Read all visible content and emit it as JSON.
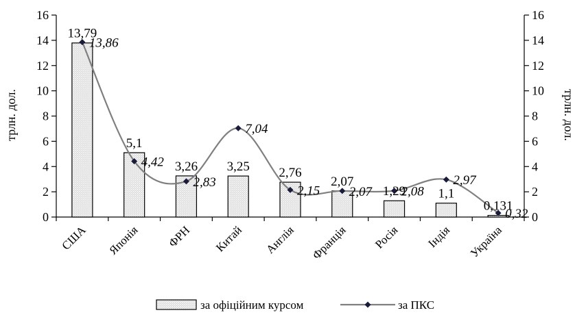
{
  "chart_data": {
    "type": "bar",
    "categories": [
      "США",
      "Японія",
      "ФРН",
      "Китай",
      "Англія",
      "Франція",
      "Росія",
      "Індія",
      "Україна"
    ],
    "series": [
      {
        "name": "за офіційним курсом",
        "type": "bar",
        "values": [
          13.79,
          5.1,
          3.26,
          3.25,
          2.76,
          2.07,
          1.29,
          1.1,
          0.131
        ],
        "labels": [
          "13,79",
          "5,1",
          "3,26",
          "3,25",
          "2,76",
          "2,07",
          "1,29",
          "1,1",
          "0,131"
        ],
        "color": "#d9d9d9"
      },
      {
        "name": "за ПКС",
        "type": "line",
        "values": [
          13.86,
          4.42,
          2.83,
          7.04,
          2.15,
          2.07,
          2.08,
          2.97,
          0.32
        ],
        "labels": [
          "13,86",
          "4,42",
          "2,83",
          "7,04",
          "2,15",
          "2,07",
          "2,08",
          "2,97",
          "0,32"
        ],
        "line_color": "#7f7f7f",
        "marker_color": "#1a1a3a"
      }
    ],
    "ylabel_left": "трлн. дол.",
    "ylabel_right": "трлн. дол.",
    "ylim": [
      0,
      16
    ],
    "yticks": [
      0,
      2,
      4,
      6,
      8,
      10,
      12,
      14,
      16
    ],
    "grid": false,
    "legend": "bottom"
  }
}
